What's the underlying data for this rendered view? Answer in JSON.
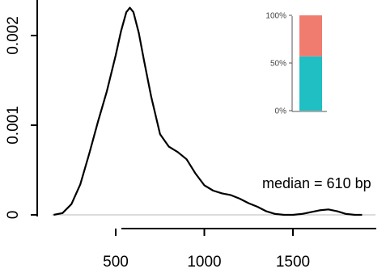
{
  "chart_data": {
    "type": "line",
    "title": "",
    "xlabel": "",
    "ylabel": "",
    "xlim": [
      100,
      1900
    ],
    "ylim": [
      0,
      0.0024
    ],
    "x_ticks": [
      {
        "value": 500,
        "label": "500"
      },
      {
        "value": 1000,
        "label": "1000"
      },
      {
        "value": 1500,
        "label": "1500"
      }
    ],
    "y_ticks": [
      {
        "value": 0,
        "label": "0"
      },
      {
        "value": 0.001,
        "label": "0.001"
      },
      {
        "value": 0.002,
        "label": "0.002"
      }
    ],
    "series": [
      {
        "x": [
          150,
          200,
          250,
          300,
          350,
          400,
          450,
          500,
          530,
          560,
          580,
          600,
          630,
          660,
          700,
          750,
          800,
          850,
          900,
          950,
          1000,
          1050,
          1100,
          1150,
          1200,
          1250,
          1300,
          1350,
          1400,
          1450,
          1500,
          1550,
          1600,
          1650,
          1700,
          1750,
          1800,
          1850,
          1890
        ],
        "y": [
          0.0,
          2e-05,
          0.00012,
          0.00034,
          0.00068,
          0.00104,
          0.00138,
          0.00178,
          0.00205,
          0.00226,
          0.00231,
          0.00226,
          0.00203,
          0.00172,
          0.00132,
          0.0009,
          0.00076,
          0.0007,
          0.00062,
          0.00046,
          0.00033,
          0.00027,
          0.00024,
          0.00022,
          0.00018,
          0.00013,
          9e-05,
          4e-05,
          1e-05,
          0.0,
          0.0,
          1e-05,
          3e-05,
          5e-05,
          6e-05,
          4e-05,
          1e-05,
          0.0,
          0.0
        ]
      }
    ],
    "annotation": "median = 610 bp",
    "inset": {
      "type": "stacked-bar",
      "ticks": [
        "0%",
        "50%",
        "100%"
      ],
      "segments": [
        {
          "value": 57,
          "color": "#1fbfc4"
        },
        {
          "value": 43,
          "color": "#f07c70"
        }
      ]
    }
  }
}
